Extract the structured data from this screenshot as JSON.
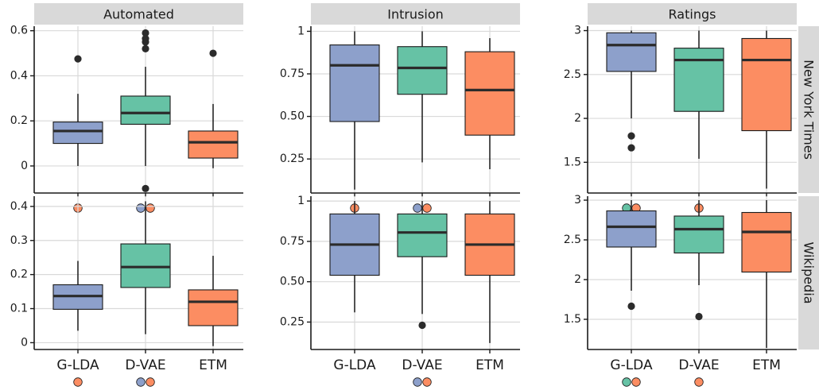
{
  "chart_data": {
    "type": "boxplot",
    "categories": [
      "G-LDA",
      "D-VAE",
      "ETM"
    ],
    "category_colors": {
      "G-LDA": "#8DA0CB",
      "D-VAE": "#66C2A5",
      "ETM": "#FC8D62"
    },
    "box_outline_color": "#1a1a1a",
    "strip_color": "#D9D9D9",
    "grid": true,
    "column_titles": [
      "Automated",
      "Intrusion",
      "Ratings"
    ],
    "row_titles": [
      "New York Times",
      "Wikipedia"
    ],
    "panels": [
      {
        "row": 0,
        "col": 0,
        "ylim": [
          -0.12,
          0.62
        ],
        "yticks": [
          0,
          0.2,
          0.4,
          0.6
        ],
        "ytick_labels": [
          "0",
          "0.2",
          "0.4",
          "0.6"
        ],
        "boxes": [
          {
            "category": "G-LDA",
            "min": 0.0,
            "q1": 0.1,
            "median": 0.155,
            "q3": 0.195,
            "max": 0.32,
            "outliers": [
              0.475
            ]
          },
          {
            "category": "D-VAE",
            "min": 0.0,
            "q1": 0.185,
            "median": 0.235,
            "q3": 0.31,
            "max": 0.44,
            "outliers": [
              0.52,
              0.55,
              0.565,
              0.59,
              -0.1
            ]
          },
          {
            "category": "ETM",
            "min": -0.01,
            "q1": 0.035,
            "median": 0.105,
            "q3": 0.155,
            "max": 0.275,
            "outliers": [
              0.5
            ]
          }
        ],
        "significance_markers": [
          {
            "category": "G-LDA",
            "colors": [
              "#FC8D62"
            ]
          },
          {
            "category": "D-VAE",
            "colors": [
              "#8DA0CB",
              "#FC8D62"
            ]
          }
        ]
      },
      {
        "row": 0,
        "col": 1,
        "ylim": [
          0.05,
          1.03
        ],
        "yticks": [
          0.25,
          0.5,
          0.75,
          1
        ],
        "ytick_labels": [
          "0.25",
          "0.50",
          "0.75",
          "1"
        ],
        "boxes": [
          {
            "category": "G-LDA",
            "min": 0.07,
            "q1": 0.47,
            "median": 0.8,
            "q3": 0.92,
            "max": 1.0,
            "outliers": []
          },
          {
            "category": "D-VAE",
            "min": 0.23,
            "q1": 0.63,
            "median": 0.785,
            "q3": 0.91,
            "max": 1.0,
            "outliers": []
          },
          {
            "category": "ETM",
            "min": 0.19,
            "q1": 0.39,
            "median": 0.655,
            "q3": 0.88,
            "max": 0.96,
            "outliers": []
          }
        ],
        "significance_markers": [
          {
            "category": "G-LDA",
            "colors": [
              "#FC8D62"
            ]
          },
          {
            "category": "D-VAE",
            "colors": [
              "#8DA0CB",
              "#FC8D62"
            ]
          }
        ]
      },
      {
        "row": 0,
        "col": 2,
        "ylim": [
          1.15,
          3.05
        ],
        "yticks": [
          1.5,
          2,
          2.5,
          3
        ],
        "ytick_labels": [
          "1.5",
          "2",
          "2.5",
          "3"
        ],
        "boxes": [
          {
            "category": "G-LDA",
            "min": 2.0,
            "q1": 2.535,
            "median": 2.835,
            "q3": 2.975,
            "max": 3.0,
            "outliers": [
              1.8,
              1.665
            ]
          },
          {
            "category": "D-VAE",
            "min": 1.54,
            "q1": 2.08,
            "median": 2.665,
            "q3": 2.8,
            "max": 3.0,
            "outliers": []
          },
          {
            "category": "ETM",
            "min": 1.2,
            "q1": 1.86,
            "median": 2.665,
            "q3": 2.91,
            "max": 3.0,
            "outliers": []
          }
        ],
        "significance_markers": [
          {
            "category": "G-LDA",
            "colors": [
              "#66C2A5",
              "#FC8D62"
            ]
          },
          {
            "category": "D-VAE",
            "colors": [
              "#FC8D62"
            ]
          }
        ]
      },
      {
        "row": 1,
        "col": 0,
        "ylim": [
          -0.02,
          0.43
        ],
        "yticks": [
          0,
          0.1,
          0.2,
          0.3,
          0.4
        ],
        "ytick_labels": [
          "0",
          "0.1",
          "0.2",
          "0.3",
          "0.4"
        ],
        "boxes": [
          {
            "category": "G-LDA",
            "min": 0.035,
            "q1": 0.098,
            "median": 0.137,
            "q3": 0.17,
            "max": 0.24,
            "outliers": []
          },
          {
            "category": "D-VAE",
            "min": 0.025,
            "q1": 0.162,
            "median": 0.222,
            "q3": 0.29,
            "max": 0.415,
            "outliers": []
          },
          {
            "category": "ETM",
            "min": -0.01,
            "q1": 0.05,
            "median": 0.12,
            "q3": 0.155,
            "max": 0.255,
            "outliers": []
          }
        ],
        "significance_markers": [
          {
            "category": "G-LDA",
            "colors": [
              "#FC8D62"
            ]
          },
          {
            "category": "D-VAE",
            "colors": [
              "#8DA0CB",
              "#FC8D62"
            ]
          }
        ]
      },
      {
        "row": 1,
        "col": 1,
        "ylim": [
          0.08,
          1.03
        ],
        "yticks": [
          0.25,
          0.5,
          0.75,
          1
        ],
        "ytick_labels": [
          "0.25",
          "0.50",
          "0.75",
          "1"
        ],
        "boxes": [
          {
            "category": "G-LDA",
            "min": 0.31,
            "q1": 0.54,
            "median": 0.73,
            "q3": 0.92,
            "max": 1.0,
            "outliers": []
          },
          {
            "category": "D-VAE",
            "min": 0.3,
            "q1": 0.655,
            "median": 0.805,
            "q3": 0.92,
            "max": 1.0,
            "outliers": [
              0.23
            ]
          },
          {
            "category": "ETM",
            "min": 0.12,
            "q1": 0.54,
            "median": 0.73,
            "q3": 0.92,
            "max": 1.0,
            "outliers": []
          }
        ],
        "significance_markers": [
          {
            "category": "D-VAE",
            "colors": [
              "#8DA0CB",
              "#FC8D62"
            ]
          }
        ]
      },
      {
        "row": 1,
        "col": 2,
        "ylim": [
          1.12,
          3.05
        ],
        "yticks": [
          1.5,
          2,
          2.5,
          3
        ],
        "ytick_labels": [
          "1.5",
          "2",
          "2.5",
          "3"
        ],
        "boxes": [
          {
            "category": "G-LDA",
            "min": 1.86,
            "q1": 2.41,
            "median": 2.665,
            "q3": 2.865,
            "max": 3.0,
            "outliers": [
              1.665
            ]
          },
          {
            "category": "D-VAE",
            "min": 1.93,
            "q1": 2.335,
            "median": 2.635,
            "q3": 2.8,
            "max": 3.0,
            "outliers": [
              1.535
            ]
          },
          {
            "category": "ETM",
            "min": 1.14,
            "q1": 2.095,
            "median": 2.6,
            "q3": 2.845,
            "max": 3.0,
            "outliers": []
          }
        ],
        "significance_markers": [
          {
            "category": "G-LDA",
            "colors": [
              "#66C2A5",
              "#FC8D62"
            ]
          },
          {
            "category": "D-VAE",
            "colors": [
              "#FC8D62"
            ]
          }
        ]
      }
    ]
  }
}
